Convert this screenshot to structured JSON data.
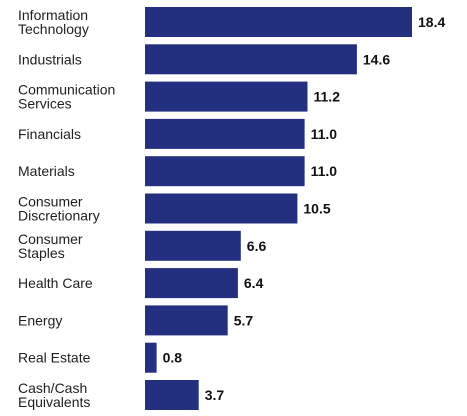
{
  "chart_data": {
    "type": "bar",
    "orientation": "horizontal",
    "categories": [
      [
        "Information",
        "Technology"
      ],
      [
        "Industrials"
      ],
      [
        "Communication",
        "Services"
      ],
      [
        "Financials"
      ],
      [
        "Materials"
      ],
      [
        "Consumer",
        "Discretionary"
      ],
      [
        "Consumer",
        "Staples"
      ],
      [
        "Health Care"
      ],
      [
        "Energy"
      ],
      [
        "Real Estate"
      ],
      [
        "Cash/Cash",
        "Equivalents"
      ]
    ],
    "values": [
      18.4,
      14.6,
      11.2,
      11.0,
      11.0,
      10.5,
      6.6,
      6.4,
      5.7,
      0.8,
      3.7
    ],
    "value_labels": [
      "18.4",
      "14.6",
      "11.2",
      "11.0",
      "11.0",
      "10.5",
      "6.6",
      "6.4",
      "5.7",
      "0.8",
      "3.7"
    ],
    "bar_color": "#232f7f",
    "title": "",
    "xlabel": "",
    "ylabel": "",
    "grid": false,
    "legend": "none"
  }
}
